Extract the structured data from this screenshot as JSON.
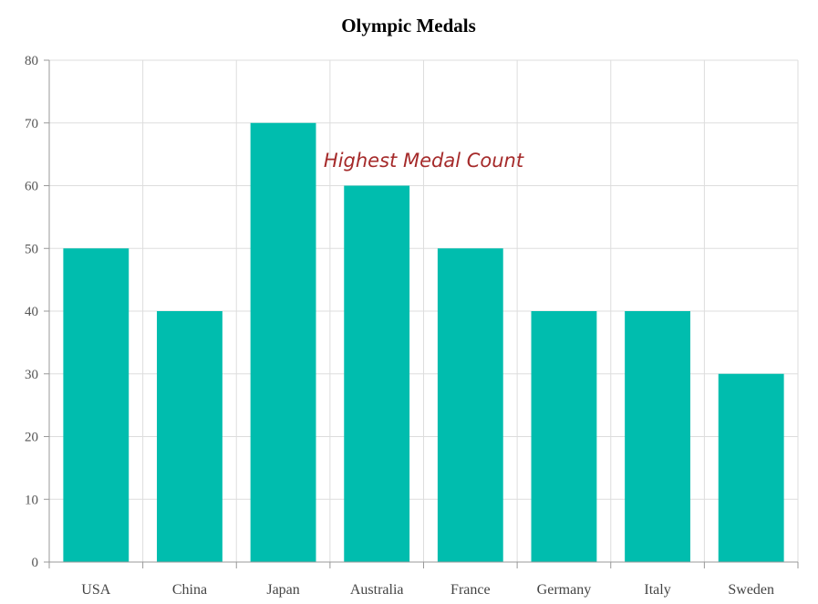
{
  "chart_data": {
    "type": "bar",
    "title": "Olympic Medals",
    "xlabel": "",
    "ylabel": "",
    "categories": [
      "USA",
      "China",
      "Japan",
      "Australia",
      "France",
      "Germany",
      "Italy",
      "Sweden"
    ],
    "values": [
      50,
      40,
      70,
      60,
      50,
      40,
      40,
      30
    ],
    "ylim": [
      0,
      80
    ],
    "yticks": [
      0,
      10,
      20,
      30,
      40,
      50,
      60,
      70,
      80
    ],
    "grid": true,
    "annotations": [
      {
        "text": "Highest Medal Count",
        "x_between": [
          "Australia",
          "France"
        ],
        "y": 64
      }
    ],
    "colors": {
      "bar": "#00BDAE",
      "annotation": "#A52A2A",
      "grid": "#dddddd",
      "axis": "#999999"
    }
  }
}
